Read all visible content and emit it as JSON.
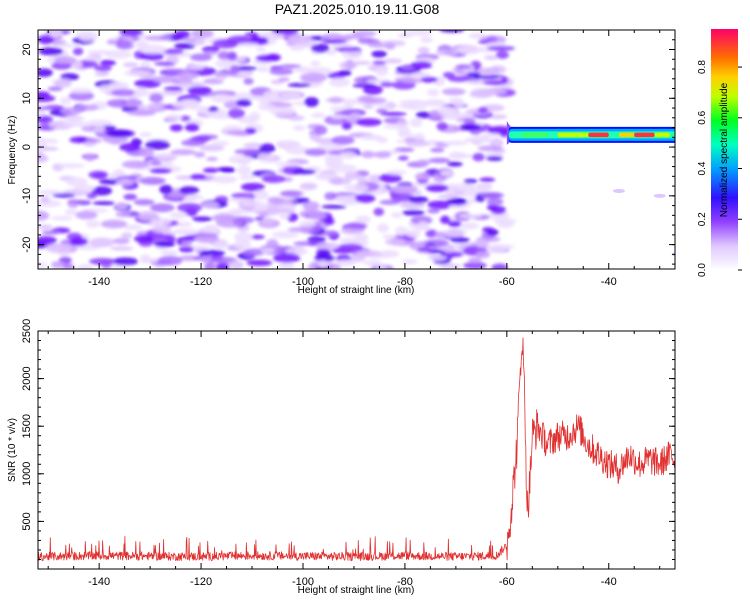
{
  "title": "PAZ1.2025.010.19.11.G08",
  "colors": {
    "snr_line": "#e03030",
    "axis": "#000000",
    "background": "#ffffff"
  },
  "colorbar": {
    "label": "Normalized spectral amplitude",
    "range": [
      0,
      0.95
    ],
    "ticks": [
      "0.0",
      "0.2",
      "0.4",
      "0.6",
      "0.8"
    ],
    "colormap": [
      "#ffffff",
      "#c080ff",
      "#7000ff",
      "#0000ff",
      "#00c8ff",
      "#00ff40",
      "#ffff00",
      "#ff8000",
      "#ff0060"
    ]
  },
  "chart_data": [
    {
      "type": "heatmap",
      "title": "PAZ1.2025.010.19.11.G08",
      "xlabel": "Height of straight line (km)",
      "ylabel": "Frequency (Hz)",
      "xlim": [
        -152,
        -27
      ],
      "ylim": [
        -25,
        24
      ],
      "x_ticks": [
        "-140",
        "-120",
        "-100",
        "-80",
        "-60",
        "-40"
      ],
      "y_ticks": [
        "-20",
        "-10",
        "0",
        "10",
        "20"
      ],
      "noise_region": {
        "x_range": [
          -152,
          -60
        ],
        "y_range": [
          -25,
          24
        ],
        "amplitude_range": [
          0.0,
          0.15
        ]
      },
      "signal_band": {
        "x_range": [
          -60,
          -27
        ],
        "frequency_hz": 2.5,
        "peak_amplitude": 0.95,
        "peak_x": [
          -47,
          -33
        ]
      },
      "grid": false
    },
    {
      "type": "line",
      "xlabel": "Height of straight line (km)",
      "ylabel": "SNR (10 * v/v)",
      "xlim": [
        -152,
        -27
      ],
      "ylim": [
        0,
        2500
      ],
      "x_ticks": [
        "-140",
        "-120",
        "-100",
        "-80",
        "-60",
        "-40"
      ],
      "y_ticks": [
        "500",
        "1000",
        "1500",
        "2000",
        "2500"
      ],
      "series": [
        {
          "x": [
            -152,
            -140,
            -130,
            -120,
            -110,
            -100,
            -90,
            -80,
            -70,
            -62,
            -60,
            -59,
            -58,
            -57,
            -56.5,
            -56,
            -55.5,
            -55,
            -54,
            -52,
            -50,
            -48,
            -46,
            -44,
            -42,
            -40,
            -38,
            -36,
            -34,
            -32,
            -30,
            -28,
            -27
          ],
          "y": [
            130,
            140,
            135,
            130,
            140,
            135,
            130,
            140,
            130,
            140,
            250,
            700,
            1300,
            2500,
            1800,
            600,
            900,
            1400,
            1500,
            1300,
            1400,
            1400,
            1500,
            1300,
            1200,
            1100,
            1050,
            1200,
            1100,
            1150,
            1100,
            1200,
            1150
          ]
        }
      ],
      "grid": false
    }
  ]
}
